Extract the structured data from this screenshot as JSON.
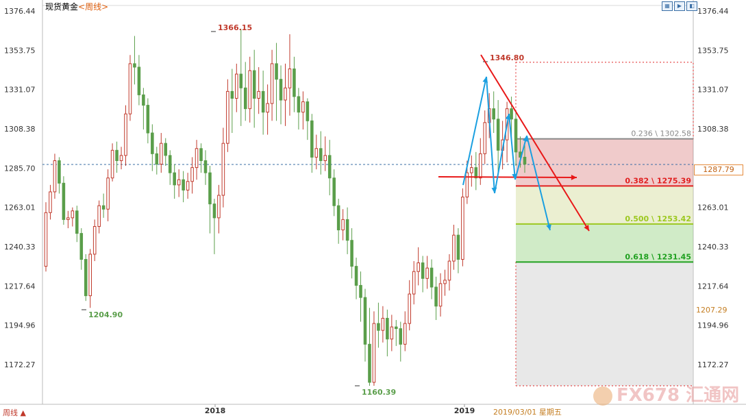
{
  "header": {
    "instrument": "现货黄金",
    "period": "<周线>",
    "toolbar_icons": [
      "grid-icon",
      "play-icon",
      "settings-icon"
    ]
  },
  "footer": {
    "period_button": "周线 ▲",
    "x_labels": [
      {
        "label": "2018"
      },
      {
        "label": "2019"
      }
    ],
    "current_date": "2019/03/01  星期五"
  },
  "price_tags": {
    "current": "1287.79",
    "low": "1207.29"
  },
  "watermark": "FX678 汇通网",
  "colors": {
    "up": "#c0392b",
    "down": "#5a9e4a",
    "dashed_line": "#3a6ea5",
    "fib_0236": "#888888",
    "fib_0382": "#e02020",
    "fib_0500": "#9cc820",
    "fib_0618": "#20a020"
  },
  "chart_data": {
    "type": "candlestick",
    "title": "现货黄金 <周线>",
    "y_ticks": [
      1376.44,
      1353.75,
      1331.07,
      1308.38,
      1285.7,
      1263.01,
      1240.33,
      1217.64,
      1194.96,
      1172.27
    ],
    "ylim": [
      1160,
      1385
    ],
    "current_price": 1287.79,
    "annotations": [
      {
        "label": "1366.15",
        "price": 1366.15,
        "color": "#c0392b"
      },
      {
        "label": "1204.90",
        "price": 1204.9,
        "color": "#5a9e4a"
      },
      {
        "label": "1160.39",
        "price": 1160.39,
        "color": "#5a9e4a"
      },
      {
        "label": "1346.80",
        "price": 1346.8,
        "color": "#c0392b"
      }
    ],
    "fibonacci": [
      {
        "label": "0.236 \\ 1302.58",
        "price": 1302.58
      },
      {
        "label": "0.382 \\ 1275.39",
        "price": 1275.39
      },
      {
        "label": "0.500 \\ 1253.42",
        "price": 1253.42
      },
      {
        "label": "0.618 \\ 1231.45",
        "price": 1231.45
      }
    ],
    "candles": [
      [
        1229,
        1260,
        1226,
        1266
      ],
      [
        1260,
        1272,
        1256,
        1276
      ],
      [
        1272,
        1290,
        1268,
        1294
      ],
      [
        1290,
        1277,
        1271,
        1292
      ],
      [
        1277,
        1256,
        1253,
        1281
      ],
      [
        1256,
        1257,
        1251,
        1261
      ],
      [
        1257,
        1261,
        1252,
        1263
      ],
      [
        1261,
        1248,
        1243,
        1264
      ],
      [
        1248,
        1233,
        1227,
        1251
      ],
      [
        1233,
        1212,
        1209,
        1236
      ],
      [
        1212,
        1236,
        1205,
        1239
      ],
      [
        1236,
        1252,
        1232,
        1256
      ],
      [
        1252,
        1264,
        1248,
        1267
      ],
      [
        1264,
        1262,
        1257,
        1271
      ],
      [
        1262,
        1280,
        1255,
        1285
      ],
      [
        1280,
        1296,
        1278,
        1300
      ],
      [
        1296,
        1290,
        1283,
        1301
      ],
      [
        1290,
        1293,
        1285,
        1298
      ],
      [
        1293,
        1317,
        1287,
        1322
      ],
      [
        1317,
        1346,
        1313,
        1351
      ],
      [
        1346,
        1344,
        1334,
        1362
      ],
      [
        1344,
        1328,
        1322,
        1351
      ],
      [
        1328,
        1322,
        1308,
        1332
      ],
      [
        1322,
        1306,
        1300,
        1326
      ],
      [
        1306,
        1294,
        1284,
        1311
      ],
      [
        1294,
        1288,
        1282,
        1298
      ],
      [
        1288,
        1300,
        1283,
        1306
      ],
      [
        1300,
        1293,
        1287,
        1303
      ],
      [
        1293,
        1283,
        1276,
        1296
      ],
      [
        1283,
        1276,
        1268,
        1288
      ],
      [
        1276,
        1279,
        1269,
        1285
      ],
      [
        1279,
        1273,
        1266,
        1284
      ],
      [
        1273,
        1278,
        1268,
        1283
      ],
      [
        1278,
        1286,
        1271,
        1292
      ],
      [
        1286,
        1297,
        1279,
        1302
      ],
      [
        1297,
        1290,
        1283,
        1300
      ],
      [
        1290,
        1283,
        1276,
        1296
      ],
      [
        1283,
        1265,
        1248,
        1287
      ],
      [
        1265,
        1257,
        1236,
        1268
      ],
      [
        1257,
        1270,
        1248,
        1276
      ],
      [
        1270,
        1300,
        1263,
        1309
      ],
      [
        1300,
        1330,
        1295,
        1337
      ],
      [
        1330,
        1326,
        1306,
        1343
      ],
      [
        1326,
        1340,
        1318,
        1346
      ],
      [
        1340,
        1332,
        1310,
        1366
      ],
      [
        1332,
        1320,
        1313,
        1347
      ],
      [
        1320,
        1342,
        1312,
        1350
      ],
      [
        1342,
        1326,
        1309,
        1354
      ],
      [
        1326,
        1330,
        1317,
        1344
      ],
      [
        1330,
        1318,
        1305,
        1342
      ],
      [
        1318,
        1323,
        1305,
        1334
      ],
      [
        1323,
        1346,
        1313,
        1354
      ],
      [
        1346,
        1337,
        1313,
        1358
      ],
      [
        1337,
        1325,
        1311,
        1345
      ],
      [
        1325,
        1332,
        1310,
        1346
      ],
      [
        1332,
        1343,
        1316,
        1363
      ],
      [
        1343,
        1327,
        1318,
        1350
      ],
      [
        1327,
        1318,
        1308,
        1332
      ],
      [
        1318,
        1324,
        1308,
        1330
      ],
      [
        1324,
        1313,
        1302,
        1326
      ],
      [
        1313,
        1292,
        1283,
        1317
      ],
      [
        1292,
        1297,
        1285,
        1305
      ],
      [
        1297,
        1290,
        1282,
        1307
      ],
      [
        1290,
        1293,
        1284,
        1304
      ],
      [
        1293,
        1280,
        1270,
        1302
      ],
      [
        1280,
        1264,
        1258,
        1285
      ],
      [
        1264,
        1250,
        1242,
        1268
      ],
      [
        1250,
        1256,
        1244,
        1262
      ],
      [
        1256,
        1244,
        1236,
        1263
      ],
      [
        1244,
        1229,
        1222,
        1251
      ],
      [
        1229,
        1218,
        1210,
        1234
      ],
      [
        1218,
        1211,
        1197,
        1226
      ],
      [
        1211,
        1184,
        1174,
        1216
      ],
      [
        1184,
        1162,
        1160,
        1205
      ],
      [
        1162,
        1196,
        1160,
        1203
      ],
      [
        1196,
        1192,
        1182,
        1208
      ],
      [
        1192,
        1199,
        1185,
        1206
      ],
      [
        1199,
        1187,
        1177,
        1204
      ],
      [
        1187,
        1194,
        1180,
        1201
      ],
      [
        1194,
        1193,
        1183,
        1198
      ],
      [
        1193,
        1184,
        1174,
        1197
      ],
      [
        1184,
        1196,
        1180,
        1203
      ],
      [
        1196,
        1213,
        1192,
        1221
      ],
      [
        1213,
        1226,
        1207,
        1232
      ],
      [
        1226,
        1231,
        1218,
        1240
      ],
      [
        1231,
        1222,
        1214,
        1235
      ],
      [
        1222,
        1228,
        1216,
        1235
      ],
      [
        1228,
        1217,
        1210,
        1233
      ],
      [
        1217,
        1206,
        1198,
        1223
      ],
      [
        1206,
        1219,
        1200,
        1225
      ],
      [
        1219,
        1221,
        1212,
        1227
      ],
      [
        1221,
        1232,
        1215,
        1236
      ],
      [
        1232,
        1247,
        1227,
        1253
      ],
      [
        1247,
        1233,
        1225,
        1251
      ],
      [
        1233,
        1269,
        1229,
        1274
      ],
      [
        1269,
        1283,
        1265,
        1290
      ],
      [
        1283,
        1286,
        1275,
        1293
      ],
      [
        1286,
        1280,
        1273,
        1295
      ],
      [
        1280,
        1294,
        1276,
        1303
      ],
      [
        1294,
        1312,
        1288,
        1319
      ],
      [
        1312,
        1320,
        1303,
        1329
      ],
      [
        1320,
        1314,
        1306,
        1330
      ],
      [
        1314,
        1296,
        1282,
        1325
      ],
      [
        1296,
        1302,
        1285,
        1313
      ],
      [
        1302,
        1320,
        1289,
        1324
      ],
      [
        1320,
        1314,
        1300,
        1327
      ],
      [
        1314,
        1295,
        1287,
        1319
      ],
      [
        1295,
        1292,
        1286,
        1304
      ],
      [
        1292,
        1288,
        1283,
        1300
      ]
    ],
    "x_axis": {
      "years": [
        "2018",
        "2019"
      ]
    }
  }
}
